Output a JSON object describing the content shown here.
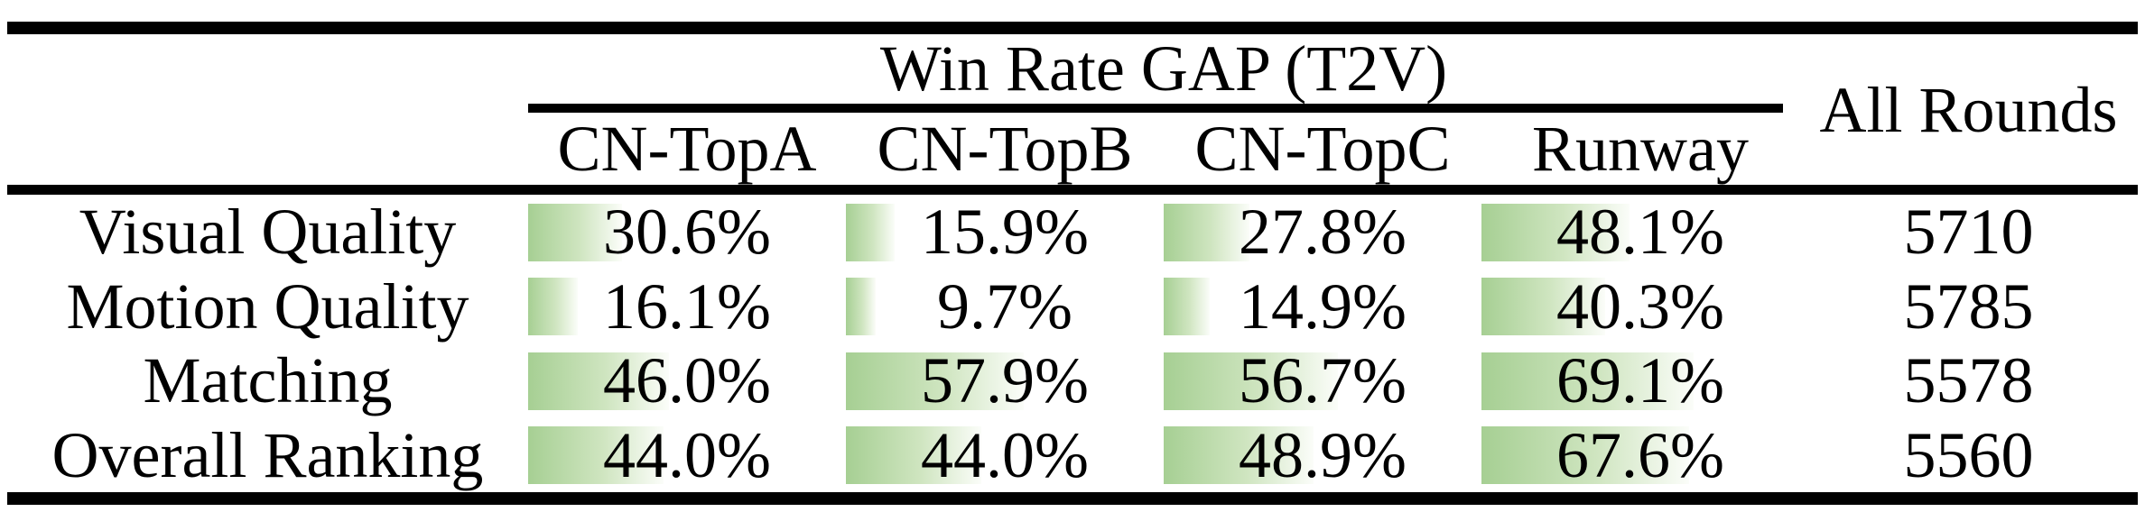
{
  "header": {
    "group": "Win Rate GAP (T2V)",
    "all_rounds": "All Rounds",
    "columns": [
      "CN-TopA",
      "CN-TopB",
      "CN-TopC",
      "Runway"
    ]
  },
  "rows": [
    {
      "label": "Visual Quality",
      "cells": [
        {
          "text": "30.6%",
          "value": 30.6
        },
        {
          "text": "15.9%",
          "value": 15.9
        },
        {
          "text": "27.8%",
          "value": 27.8
        },
        {
          "text": "48.1%",
          "value": 48.1
        }
      ],
      "all_rounds": "5710"
    },
    {
      "label": "Motion Quality",
      "cells": [
        {
          "text": "16.1%",
          "value": 16.1
        },
        {
          "text": "9.7%",
          "value": 9.7
        },
        {
          "text": "14.9%",
          "value": 14.9
        },
        {
          "text": "40.3%",
          "value": 40.3
        }
      ],
      "all_rounds": "5785"
    },
    {
      "label": "Matching",
      "cells": [
        {
          "text": "46.0%",
          "value": 46.0
        },
        {
          "text": "57.9%",
          "value": 57.9
        },
        {
          "text": "56.7%",
          "value": 56.7
        },
        {
          "text": "69.1%",
          "value": 69.1
        }
      ],
      "all_rounds": "5578"
    },
    {
      "label": "Overall Ranking",
      "cells": [
        {
          "text": "44.0%",
          "value": 44.0
        },
        {
          "text": "44.0%",
          "value": 44.0
        },
        {
          "text": "48.9%",
          "value": 48.9
        },
        {
          "text": "67.6%",
          "value": 67.6
        }
      ],
      "all_rounds": "5560"
    }
  ],
  "colors": {
    "background": "#ffffff",
    "rule": "#000000",
    "bar_start": "#a6cf93",
    "bar_mid": "#cfe5c0",
    "bar_end": "#fbfdf9"
  },
  "chart_data": {
    "type": "table",
    "title": "Win Rate GAP (T2V)",
    "categories": [
      "Visual Quality",
      "Motion Quality",
      "Matching",
      "Overall Ranking"
    ],
    "series": [
      {
        "name": "CN-TopA",
        "values": [
          30.6,
          16.1,
          46.0,
          44.0
        ]
      },
      {
        "name": "CN-TopB",
        "values": [
          15.9,
          9.7,
          57.9,
          44.0
        ]
      },
      {
        "name": "CN-TopC",
        "values": [
          27.8,
          14.9,
          56.7,
          48.9
        ]
      },
      {
        "name": "Runway",
        "values": [
          48.1,
          40.3,
          69.1,
          67.6
        ]
      },
      {
        "name": "All Rounds",
        "values": [
          5710,
          5785,
          5578,
          5560
        ]
      }
    ],
    "unit": "%",
    "bar_scale": {
      "min": 0,
      "max": 100
    },
    "notes": "Percentage cells have left-aligned green gradient data bars proportional to value; All Rounds column is plain counts."
  }
}
